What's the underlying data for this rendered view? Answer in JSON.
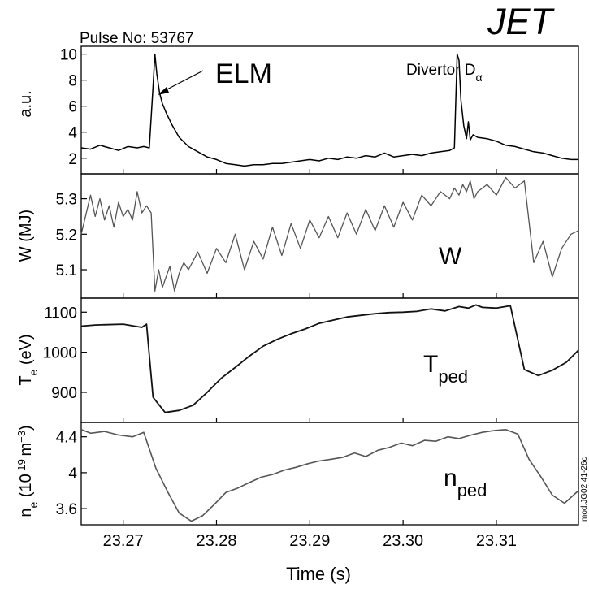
{
  "header": {
    "pulse": "Pulse No: 53767",
    "logo": "JET"
  },
  "footer": {
    "xlabel": "Time (s)",
    "side_code": "mod.JG02.41-26c"
  },
  "chart_data": [
    {
      "type": "line",
      "ylabel": "a.u.",
      "yticks": [
        2,
        4,
        6,
        8,
        10
      ],
      "ylim": [
        0.8,
        10.6
      ],
      "xlim": [
        23.2655,
        23.3188
      ],
      "color": "#000000",
      "series": [
        {
          "name": "Divertor Dα",
          "x": [
            23.2655,
            23.2665,
            23.2675,
            23.2685,
            23.2695,
            23.2705,
            23.2715,
            23.2722,
            23.2728,
            23.2732,
            23.2734,
            23.2736,
            23.2739,
            23.2742,
            23.2746,
            23.2752,
            23.276,
            23.277,
            23.278,
            23.279,
            23.28,
            23.281,
            23.282,
            23.283,
            23.284,
            23.285,
            23.286,
            23.287,
            23.288,
            23.289,
            23.29,
            23.291,
            23.292,
            23.293,
            23.294,
            23.295,
            23.296,
            23.297,
            23.298,
            23.299,
            23.3,
            23.301,
            23.302,
            23.303,
            23.304,
            23.305,
            23.3055,
            23.3058,
            23.306,
            23.3062,
            23.3065,
            23.3068,
            23.307,
            23.3072,
            23.3075,
            23.308,
            23.309,
            23.31,
            23.311,
            23.312,
            23.313,
            23.314,
            23.315,
            23.316,
            23.317,
            23.318,
            23.3188
          ],
          "y": [
            2.8,
            2.7,
            3.0,
            2.8,
            2.6,
            2.9,
            2.8,
            2.9,
            2.8,
            7.5,
            10.0,
            8.5,
            7.0,
            6.2,
            5.5,
            4.6,
            3.6,
            2.9,
            2.5,
            2.1,
            1.9,
            1.6,
            1.5,
            1.4,
            1.5,
            1.5,
            1.6,
            1.6,
            1.7,
            1.8,
            1.9,
            1.8,
            2.0,
            1.9,
            2.1,
            2.0,
            2.2,
            2.1,
            2.4,
            2.1,
            2.2,
            2.3,
            2.2,
            2.4,
            2.5,
            2.6,
            2.8,
            10.0,
            9.5,
            6.5,
            4.5,
            3.5,
            4.8,
            3.4,
            3.8,
            3.6,
            3.5,
            3.3,
            3.0,
            2.9,
            2.7,
            2.5,
            2.4,
            2.2,
            2.0,
            1.9,
            1.9
          ]
        }
      ],
      "annotations": [
        "ELM"
      ]
    },
    {
      "type": "line",
      "ylabel": "W (MJ)",
      "yticks": [
        5.1,
        5.2,
        5.3
      ],
      "ylim": [
        5.02,
        5.37
      ],
      "xlim": [
        23.2655,
        23.3188
      ],
      "color": "#555555",
      "series": [
        {
          "name": "W",
          "x": [
            23.2655,
            23.2665,
            23.267,
            23.2675,
            23.268,
            23.2685,
            23.269,
            23.2695,
            23.27,
            23.2705,
            23.271,
            23.2715,
            23.272,
            23.2725,
            23.273,
            23.2734,
            23.2738,
            23.2742,
            23.2746,
            23.275,
            23.2755,
            23.276,
            23.2765,
            23.277,
            23.278,
            23.279,
            23.28,
            23.281,
            23.282,
            23.283,
            23.284,
            23.285,
            23.286,
            23.287,
            23.288,
            23.289,
            23.29,
            23.291,
            23.292,
            23.293,
            23.294,
            23.295,
            23.296,
            23.297,
            23.298,
            23.299,
            23.3,
            23.301,
            23.302,
            23.303,
            23.304,
            23.305,
            23.3055,
            23.306,
            23.3064,
            23.3068,
            23.3072,
            23.3076,
            23.308,
            23.309,
            23.31,
            23.311,
            23.312,
            23.313,
            23.314,
            23.315,
            23.316,
            23.317,
            23.318,
            23.3188
          ],
          "y": [
            5.2,
            5.31,
            5.25,
            5.3,
            5.24,
            5.28,
            5.22,
            5.29,
            5.25,
            5.27,
            5.24,
            5.32,
            5.26,
            5.28,
            5.26,
            5.04,
            5.1,
            5.05,
            5.08,
            5.11,
            5.04,
            5.09,
            5.12,
            5.1,
            5.15,
            5.09,
            5.16,
            5.12,
            5.2,
            5.1,
            5.18,
            5.13,
            5.22,
            5.14,
            5.23,
            5.16,
            5.24,
            5.19,
            5.25,
            5.19,
            5.26,
            5.2,
            5.27,
            5.21,
            5.28,
            5.22,
            5.29,
            5.24,
            5.31,
            5.28,
            5.32,
            5.3,
            5.33,
            5.31,
            5.34,
            5.32,
            5.35,
            5.3,
            5.32,
            5.34,
            5.31,
            5.36,
            5.33,
            5.35,
            5.12,
            5.18,
            5.08,
            5.16,
            5.2,
            5.21
          ]
        }
      ],
      "annotations": [
        "W"
      ]
    },
    {
      "type": "line",
      "ylabel": "Te (eV)",
      "yticks": [
        900,
        1000,
        1100
      ],
      "ylim": [
        825,
        1135
      ],
      "xlim": [
        23.2655,
        23.3188
      ],
      "color": "#111111",
      "series": [
        {
          "name": "Tped",
          "x": [
            23.2655,
            23.267,
            23.27,
            23.272,
            23.2725,
            23.2732,
            23.2738,
            23.2745,
            23.276,
            23.2775,
            23.279,
            23.2805,
            23.282,
            23.2835,
            23.285,
            23.2865,
            23.288,
            23.2895,
            23.291,
            23.2925,
            23.294,
            23.2955,
            23.297,
            23.2985,
            23.3,
            23.3015,
            23.303,
            23.3045,
            23.306,
            23.307,
            23.3078,
            23.3085,
            23.31,
            23.3115,
            23.313,
            23.3145,
            23.316,
            23.3175,
            23.3188
          ],
          "y": [
            1065,
            1068,
            1070,
            1062,
            1070,
            888,
            870,
            850,
            855,
            868,
            900,
            935,
            962,
            990,
            1015,
            1032,
            1046,
            1058,
            1072,
            1080,
            1088,
            1092,
            1096,
            1099,
            1100,
            1102,
            1108,
            1103,
            1114,
            1110,
            1118,
            1112,
            1110,
            1116,
            957,
            942,
            955,
            975,
            1005
          ]
        }
      ],
      "annotations": [
        "Tped"
      ]
    },
    {
      "type": "line",
      "ylabel": "ne (10 19 m−3)",
      "yticks": [
        3.6,
        4.0,
        4.4
      ],
      "ylim": [
        3.42,
        4.56
      ],
      "xlim": [
        23.2655,
        23.3188
      ],
      "color": "#555555",
      "series": [
        {
          "name": "nped",
          "x": [
            23.2655,
            23.2665,
            23.268,
            23.2695,
            23.271,
            23.2722,
            23.2735,
            23.2748,
            23.276,
            23.2773,
            23.2785,
            23.2798,
            23.281,
            23.2823,
            23.2835,
            23.2848,
            23.286,
            23.2873,
            23.2885,
            23.2898,
            23.291,
            23.2923,
            23.2935,
            23.2948,
            23.296,
            23.2973,
            23.2985,
            23.2998,
            23.301,
            23.3023,
            23.3035,
            23.3048,
            23.306,
            23.3073,
            23.3085,
            23.3098,
            23.311,
            23.3123,
            23.3135,
            23.3148,
            23.316,
            23.3173,
            23.3188
          ],
          "y": [
            4.48,
            4.44,
            4.46,
            4.42,
            4.4,
            4.45,
            4.05,
            3.78,
            3.55,
            3.46,
            3.52,
            3.65,
            3.78,
            3.83,
            3.89,
            3.95,
            3.98,
            4.03,
            4.06,
            4.1,
            4.13,
            4.15,
            4.17,
            4.22,
            4.18,
            4.25,
            4.28,
            4.33,
            4.3,
            4.36,
            4.35,
            4.4,
            4.38,
            4.42,
            4.45,
            4.47,
            4.48,
            4.43,
            4.15,
            3.95,
            3.75,
            3.66,
            3.8
          ]
        }
      ],
      "annotations": [
        "nped"
      ]
    }
  ],
  "xaxis": {
    "label": "Time (s)",
    "ticks": [
      23.27,
      23.28,
      23.29,
      23.3,
      23.31
    ],
    "tick_labels": [
      "23.27",
      "23.28",
      "23.29",
      "23.30",
      "23.31"
    ]
  }
}
